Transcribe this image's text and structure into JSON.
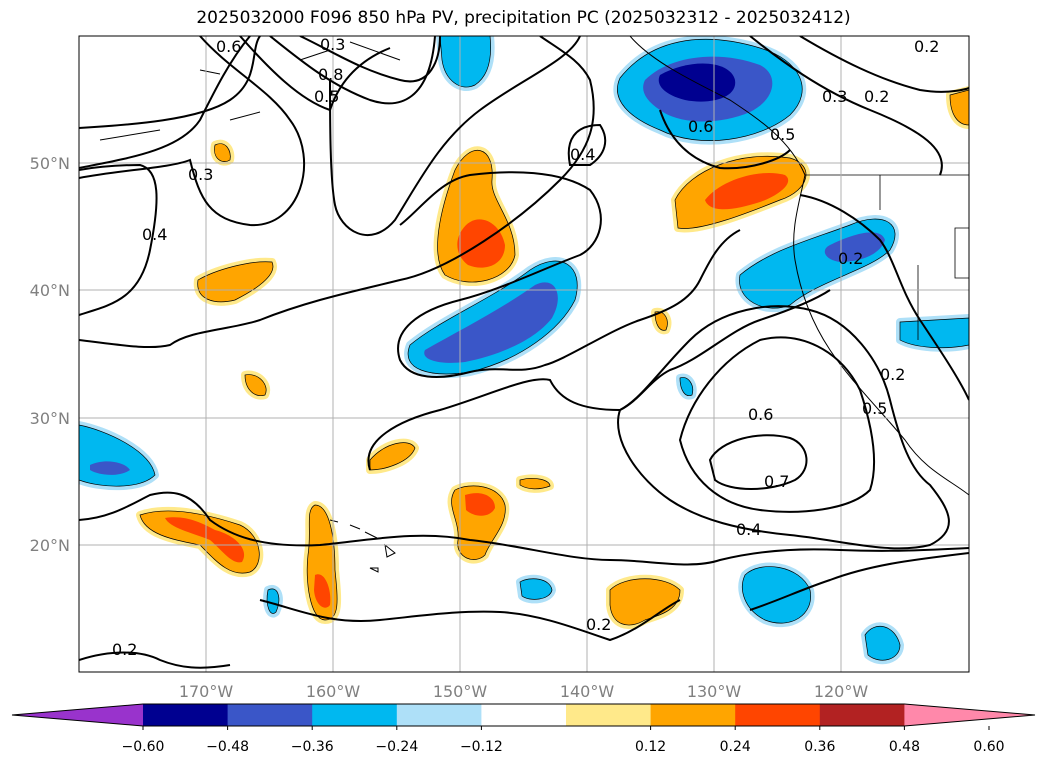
{
  "title": "2025032000 F096 850 hPa PV, precipitation PC (2025032312 - 2025032412)",
  "lon_ticks": [
    "170°W",
    "160°W",
    "150°W",
    "140°W",
    "130°W",
    "120°W"
  ],
  "lat_ticks": [
    "50°N",
    "40°N",
    "30°N",
    "20°N"
  ],
  "contour_labels": [
    "0.6",
    "0.3",
    "0.8",
    "0.5",
    "0.3",
    "0.4",
    "0.2",
    "0.4",
    "0.6",
    "0.5",
    "0.3",
    "0.2",
    "0.2",
    "0.2",
    "0.6",
    "0.7",
    "0.5",
    "0.4",
    "0.2",
    "0.2"
  ],
  "colorbar": {
    "ticks": [
      "−0.60",
      "−0.48",
      "−0.36",
      "−0.24",
      "−0.12",
      "0.12",
      "0.24",
      "0.36",
      "0.48",
      "0.60"
    ],
    "colors": [
      "#9933cc",
      "#000090",
      "#3a56c8",
      "#00b8f0",
      "#aee0f8",
      "#ffffff",
      "#ffe98a",
      "#ffa500",
      "#ff4500",
      "#b22222",
      "#ff88aa"
    ]
  },
  "precip_colors": {
    "neg_light": "#aee0f8",
    "neg_mid": "#00b8f0",
    "neg_strong": "#3a56c8",
    "neg_max": "#000090",
    "neg_extreme": "#9933cc",
    "pos_light": "#ffe98a",
    "pos_mid": "#ffa500",
    "pos_strong": "#ff4500",
    "pos_max": "#b22222"
  }
}
